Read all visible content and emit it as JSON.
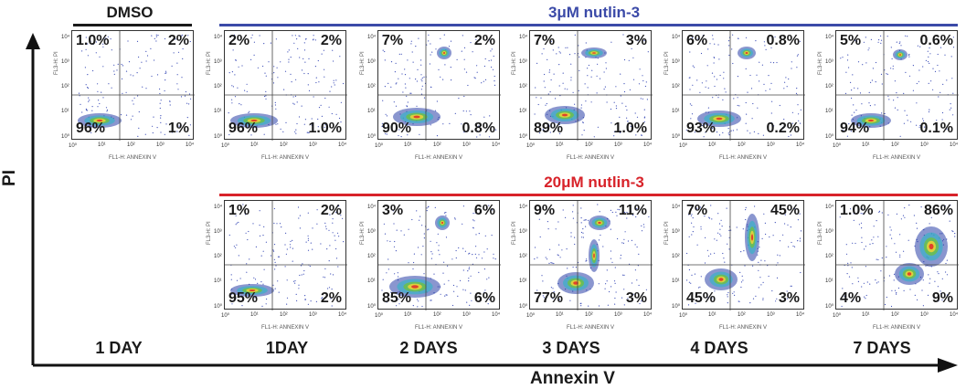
{
  "groups": {
    "dmso": {
      "label": "DMSO",
      "color": "#1a1a1a"
    },
    "low": {
      "label": "3μM nutlin-3",
      "color": "#3b4aa8"
    },
    "high": {
      "label": "20μM nutlin-3",
      "color": "#d8232a"
    }
  },
  "axes": {
    "y_title": "PI",
    "x_title": "Annexin V"
  },
  "panel_axis_labels": {
    "y": "FL3-H: PI",
    "x": "FL1-H: ANNEXIN V"
  },
  "day_labels": [
    "1 DAY",
    "1DAY",
    "2 DAYS",
    "3 DAYS",
    "4 DAYS",
    "7 DAYS"
  ],
  "chart_data": {
    "type": "scatter",
    "title": "",
    "xlabel": "Annexin V",
    "ylabel": "PI",
    "x_scale": "log",
    "y_scale": "log",
    "xlim": [
      1,
      10000
    ],
    "ylim": [
      1,
      10000
    ],
    "x_ticks": [
      "10⁰",
      "10¹",
      "10²",
      "10³",
      "10⁴"
    ],
    "y_ticks": [
      "10⁰",
      "10¹",
      "10²",
      "10³",
      "10⁴"
    ],
    "panels": [
      {
        "row": "DMSO",
        "day": "1 DAY",
        "quadrants": {
          "top_left": "1.0%",
          "top_right": "2%",
          "bottom_left": "96%",
          "bottom_right": "1%"
        }
      },
      {
        "row": "3μM nutlin-3",
        "day": "1DAY",
        "quadrants": {
          "top_left": "2%",
          "top_right": "2%",
          "bottom_left": "96%",
          "bottom_right": "1.0%"
        }
      },
      {
        "row": "3μM nutlin-3",
        "day": "2 DAYS",
        "quadrants": {
          "top_left": "7%",
          "top_right": "2%",
          "bottom_left": "90%",
          "bottom_right": "0.8%"
        }
      },
      {
        "row": "3μM nutlin-3",
        "day": "3 DAYS",
        "quadrants": {
          "top_left": "7%",
          "top_right": "3%",
          "bottom_left": "89%",
          "bottom_right": "1.0%"
        }
      },
      {
        "row": "3μM nutlin-3",
        "day": "4 DAYS",
        "quadrants": {
          "top_left": "6%",
          "top_right": "0.8%",
          "bottom_left": "93%",
          "bottom_right": "0.2%"
        }
      },
      {
        "row": "3μM nutlin-3",
        "day": "7 DAYS",
        "quadrants": {
          "top_left": "5%",
          "top_right": "0.6%",
          "bottom_left": "94%",
          "bottom_right": "0.1%"
        }
      },
      {
        "row": "20μM nutlin-3",
        "day": "1DAY",
        "quadrants": {
          "top_left": "1%",
          "top_right": "2%",
          "bottom_left": "95%",
          "bottom_right": "2%"
        }
      },
      {
        "row": "20μM nutlin-3",
        "day": "2 DAYS",
        "quadrants": {
          "top_left": "3%",
          "top_right": "6%",
          "bottom_left": "85%",
          "bottom_right": "6%"
        }
      },
      {
        "row": "20μM nutlin-3",
        "day": "3 DAYS",
        "quadrants": {
          "top_left": "9%",
          "top_right": "11%",
          "bottom_left": "77%",
          "bottom_right": "3%"
        }
      },
      {
        "row": "20μM nutlin-3",
        "day": "4 DAYS",
        "quadrants": {
          "top_left": "7%",
          "top_right": "45%",
          "bottom_left": "45%",
          "bottom_right": "3%"
        }
      },
      {
        "row": "20μM nutlin-3",
        "day": "7 DAYS",
        "quadrants": {
          "top_left": "1.0%",
          "top_right": "86%",
          "bottom_left": "4%",
          "bottom_right": "9%"
        }
      }
    ]
  }
}
